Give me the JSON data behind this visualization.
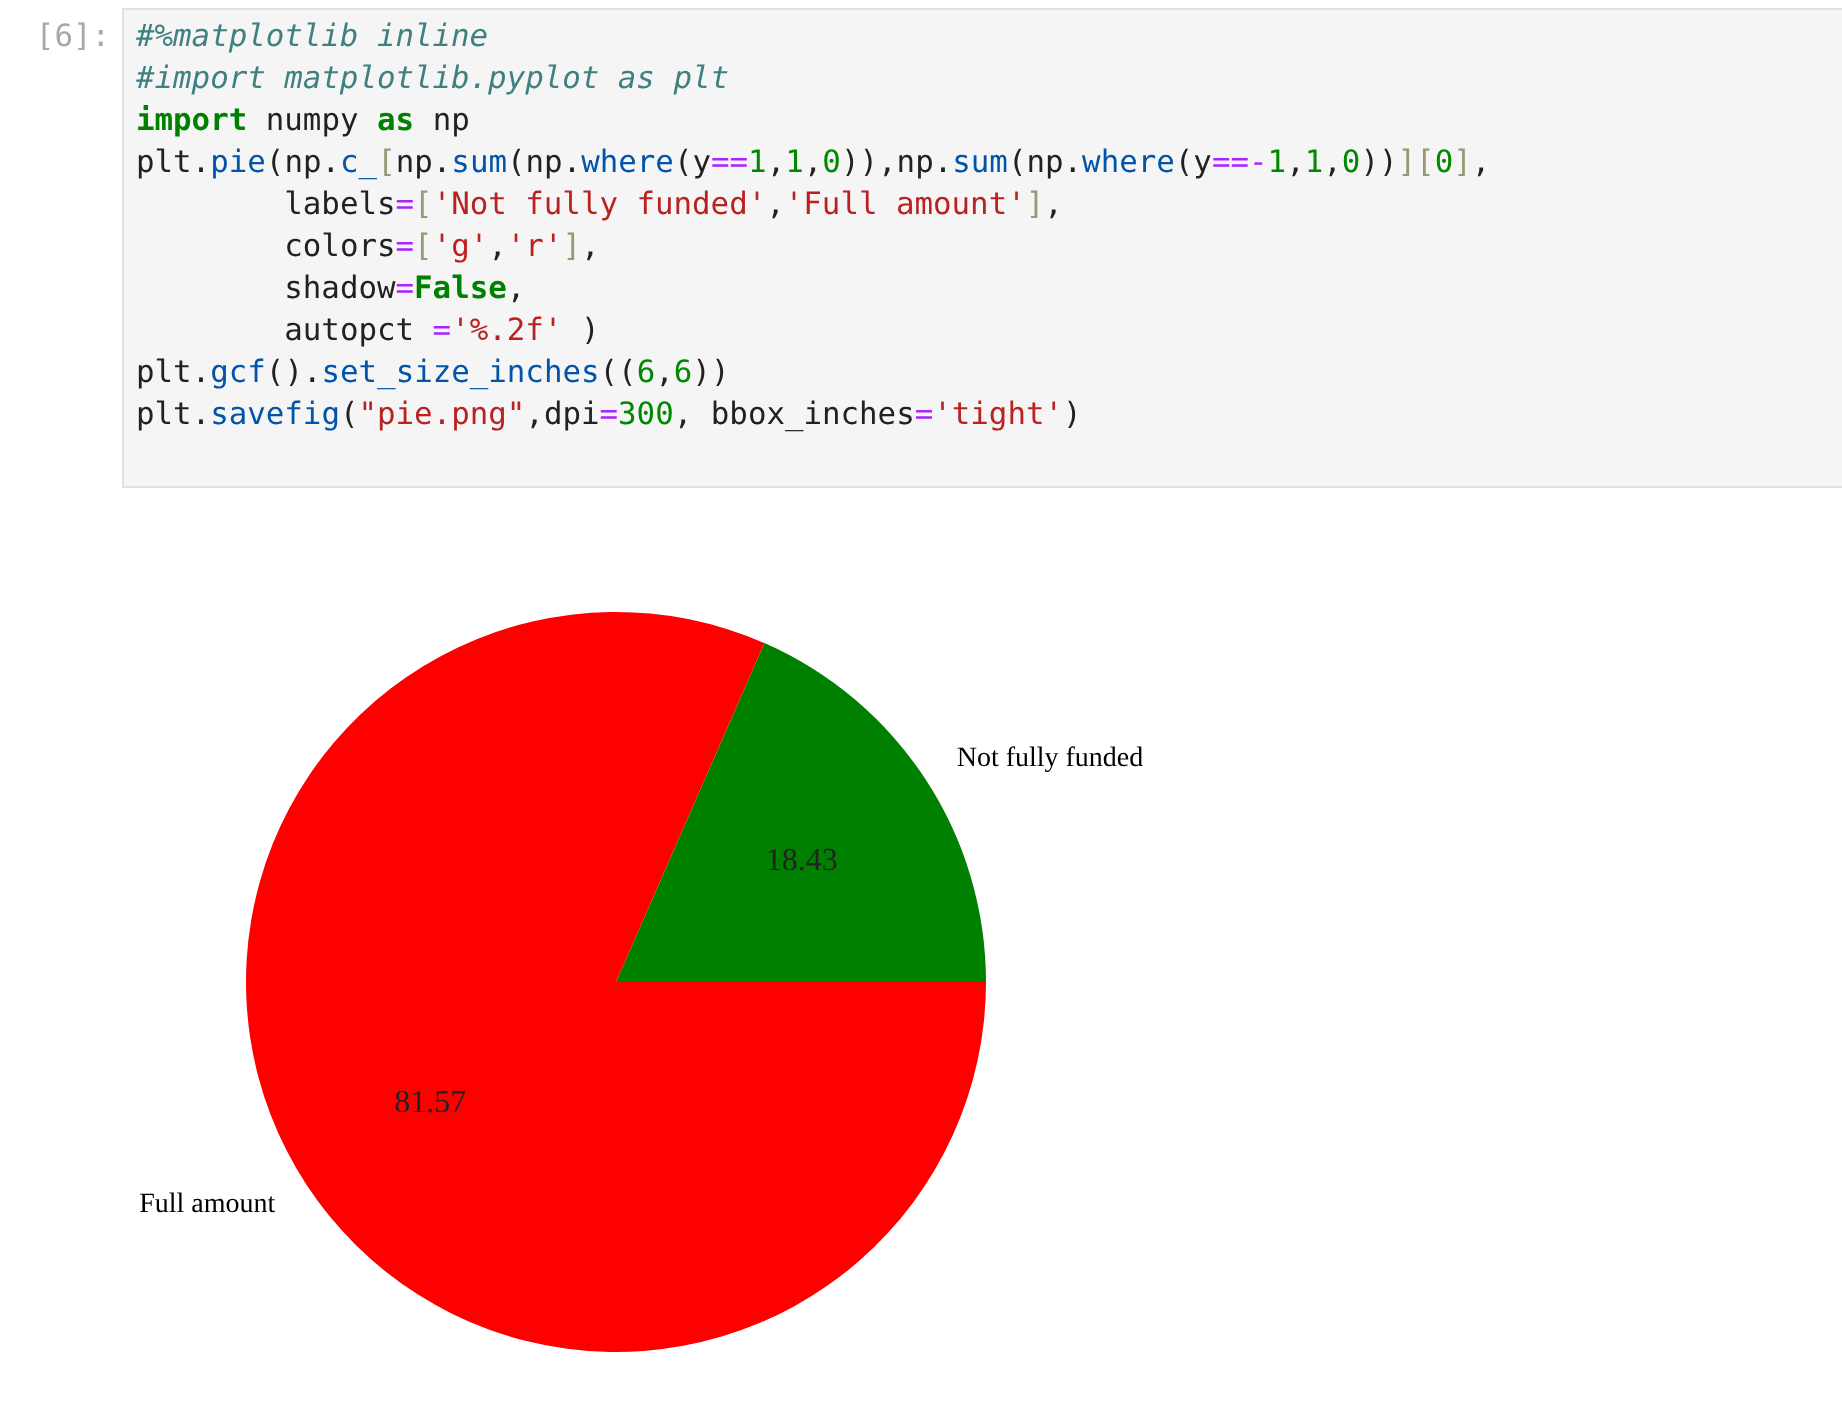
{
  "chart_data": {
    "type": "pie",
    "categories": [
      "Not fully funded",
      "Full amount"
    ],
    "values": [
      18.43,
      81.57
    ],
    "colors": [
      "#008000",
      "#ff0000"
    ],
    "data_labels": true,
    "annotations": [
      "[6]:",
      "#%matplotlib inline",
      "#import matplotlib.pyplot as plt",
      "import numpy as np",
      "plt.pie(np.c_[np.sum(np.where(y==1,1,0)),np.sum(np.where(y==-1,1,0))][0],",
      "        labels=['Not fully funded','Full amount'],",
      "        colors=['g','r'],",
      "        shadow=False,",
      "        autopct ='%.2f' )",
      "plt.gcf().set_size_inches((6,6))",
      "plt.savefig(\"pie.png\",dpi=300, bbox_inches='tight')"
    ]
  }
}
